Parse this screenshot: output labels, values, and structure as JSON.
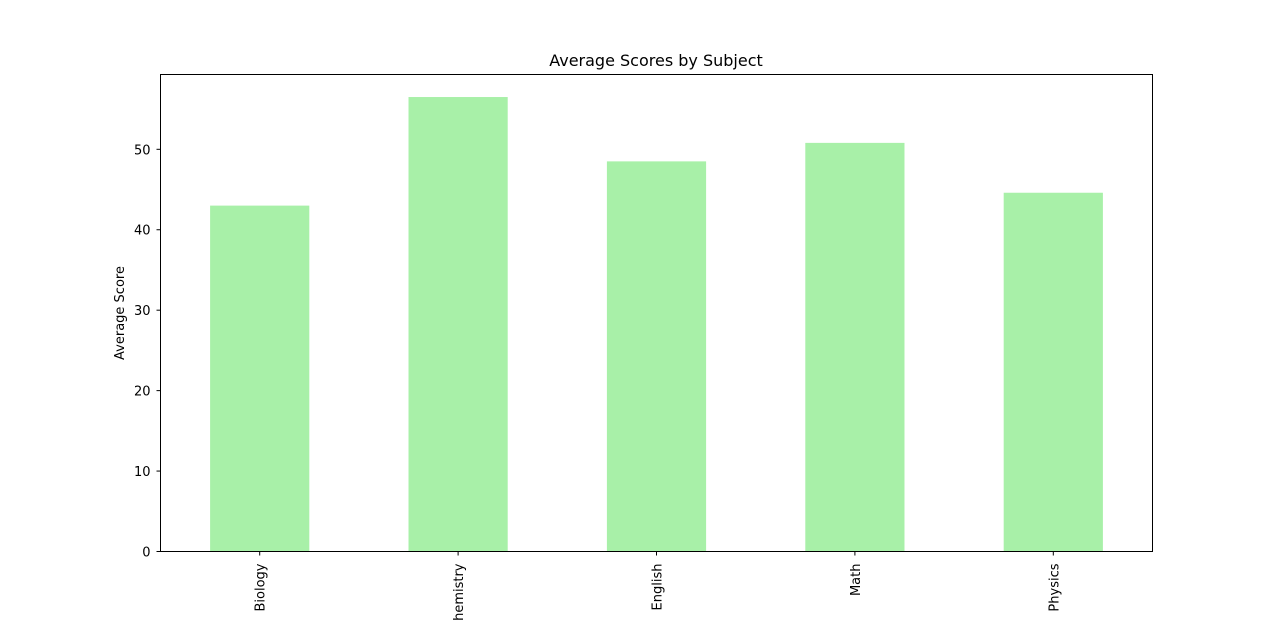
{
  "chart_data": {
    "type": "bar",
    "title": "Average Scores by Subject",
    "xlabel": "",
    "ylabel": "Average Score",
    "categories": [
      "Biology",
      "Chemistry",
      "English",
      "Math",
      "Physics"
    ],
    "values": [
      43.0,
      56.5,
      48.5,
      50.8,
      44.6
    ],
    "ylim": [
      0,
      59.3
    ],
    "yticks": [
      0,
      10,
      20,
      30,
      40,
      50
    ],
    "bar_color": "#a8f0a8",
    "grid": false,
    "legend": "none"
  }
}
